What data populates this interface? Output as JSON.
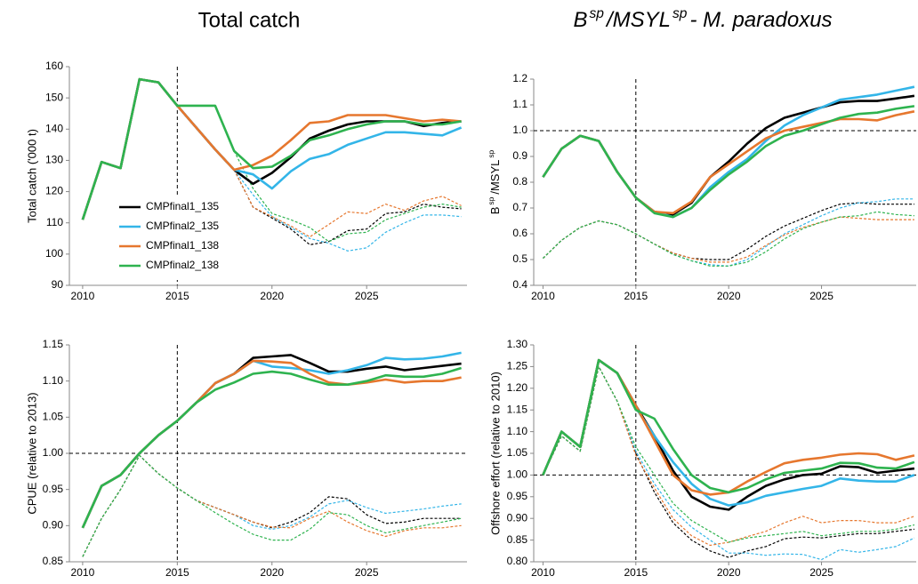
{
  "chart_data": [
    {
      "type": "line",
      "title": "Total catch",
      "ylabel": "Total catch ('000 t)",
      "x": [
        2010,
        2011,
        2012,
        2013,
        2014,
        2015,
        2016,
        2017,
        2018,
        2019,
        2020,
        2021,
        2022,
        2023,
        2024,
        2025,
        2026,
        2027,
        2028,
        2029,
        2030
      ],
      "xlim": [
        2009.3,
        2030.3
      ],
      "xticks": [
        2010,
        2015,
        2020,
        2025
      ],
      "ylim": [
        90,
        160
      ],
      "yticks": [
        90,
        100,
        110,
        120,
        130,
        140,
        150,
        160
      ],
      "vline": 2015,
      "legend": "lower-left",
      "series": [
        {
          "name": "CMPfinal1_135",
          "color": "#000000",
          "dashed": false,
          "values": [
            111,
            129.5,
            127.5,
            156,
            155,
            147.5,
            140.5,
            133.5,
            127,
            122.5,
            126,
            131,
            137,
            139.5,
            141.5,
            142.5,
            142.5,
            142.5,
            141,
            142,
            142.5
          ]
        },
        {
          "name": "CMPfinal2_135",
          "color": "#33b5e8",
          "dashed": false,
          "values": [
            111,
            129.5,
            127.5,
            156,
            155,
            147.5,
            140.5,
            133.5,
            127,
            125.5,
            121,
            126.5,
            130.5,
            132,
            135,
            137,
            139,
            139,
            138.5,
            138,
            140.5
          ]
        },
        {
          "name": "CMPfinal1_138",
          "color": "#e6772e",
          "dashed": false,
          "values": [
            111,
            129.5,
            127.5,
            156,
            155,
            147.5,
            140.5,
            133.5,
            127,
            128.5,
            131.5,
            136.5,
            142,
            142.5,
            144.5,
            144.5,
            144.5,
            143.5,
            142.5,
            143,
            142.5
          ]
        },
        {
          "name": "CMPfinal2_138",
          "color": "#2eb34f",
          "dashed": false,
          "values": [
            111,
            129.5,
            127.5,
            156,
            155,
            147.5,
            147.5,
            147.5,
            133,
            127.5,
            128,
            131.5,
            136.5,
            138,
            140,
            141.5,
            142.5,
            142.5,
            141.5,
            141.5,
            142.5
          ]
        },
        {
          "color": "#000000",
          "dashed": true,
          "values": [
            null,
            null,
            null,
            null,
            null,
            null,
            null,
            null,
            127,
            115,
            111.5,
            108,
            103,
            104,
            107.5,
            108,
            113,
            113.5,
            116,
            115,
            114.5
          ]
        },
        {
          "color": "#33b5e8",
          "dashed": true,
          "values": [
            null,
            null,
            null,
            null,
            null,
            null,
            null,
            null,
            127,
            119,
            112,
            108.5,
            105,
            103.5,
            101,
            102,
            107,
            110,
            112.5,
            112.5,
            112
          ]
        },
        {
          "color": "#e6772e",
          "dashed": true,
          "values": [
            null,
            null,
            null,
            null,
            null,
            null,
            null,
            null,
            127,
            115,
            112,
            109,
            105.5,
            109.5,
            113.5,
            113,
            116,
            114,
            117,
            118.5,
            115.5
          ]
        },
        {
          "color": "#2eb34f",
          "dashed": true,
          "values": [
            null,
            null,
            null,
            null,
            null,
            null,
            null,
            null,
            133,
            121,
            113,
            111,
            108.5,
            104,
            106.5,
            107,
            111,
            113,
            115,
            116,
            115
          ]
        }
      ]
    },
    {
      "type": "line",
      "title": [
        "B",
        "sp",
        "/MSYL",
        "sp",
        "- M. paradoxus"
      ],
      "ylabel": [
        "B",
        "sp",
        "/MSYL",
        "sp"
      ],
      "x": [
        2010,
        2011,
        2012,
        2013,
        2014,
        2015,
        2016,
        2017,
        2018,
        2019,
        2020,
        2021,
        2022,
        2023,
        2024,
        2025,
        2026,
        2027,
        2028,
        2029,
        2030
      ],
      "xlim": [
        2009.5,
        2030.1
      ],
      "xticks": [
        2010,
        2015,
        2020,
        2025
      ],
      "ylim": [
        0.4,
        1.2
      ],
      "yticks": [
        0.4,
        0.5,
        0.6,
        0.7,
        0.8,
        0.9,
        {
          "value": 1,
          "label": "1.0"
        },
        1.1,
        1.2
      ],
      "vline": 2015,
      "hline": 1,
      "series": [
        {
          "color": "#000000",
          "dashed": false,
          "values": [
            0.82,
            0.93,
            0.98,
            0.96,
            0.84,
            0.74,
            0.685,
            0.675,
            0.72,
            0.82,
            0.88,
            0.95,
            1.01,
            1.05,
            1.07,
            1.09,
            1.11,
            1.115,
            1.115,
            1.125,
            1.135
          ]
        },
        {
          "color": "#33b5e8",
          "dashed": false,
          "values": [
            0.82,
            0.93,
            0.98,
            0.96,
            0.84,
            0.74,
            0.685,
            0.665,
            0.7,
            0.78,
            0.84,
            0.89,
            0.96,
            1.02,
            1.06,
            1.09,
            1.12,
            1.13,
            1.14,
            1.155,
            1.17
          ]
        },
        {
          "color": "#e6772e",
          "dashed": false,
          "values": [
            0.82,
            0.93,
            0.98,
            0.96,
            0.84,
            0.74,
            0.685,
            0.68,
            0.725,
            0.82,
            0.87,
            0.92,
            0.97,
            1.0,
            1.015,
            1.03,
            1.045,
            1.045,
            1.04,
            1.06,
            1.075
          ]
        },
        {
          "color": "#2eb34f",
          "dashed": false,
          "values": [
            0.82,
            0.93,
            0.98,
            0.96,
            0.84,
            0.74,
            0.68,
            0.665,
            0.7,
            0.77,
            0.83,
            0.88,
            0.94,
            0.98,
            1.0,
            1.025,
            1.05,
            1.065,
            1.07,
            1.085,
            1.095
          ]
        },
        {
          "color": "#000000",
          "dashed": true,
          "values": [
            0.505,
            0.575,
            0.625,
            0.65,
            0.635,
            0.6,
            0.56,
            0.525,
            0.505,
            0.5,
            0.5,
            0.54,
            0.59,
            0.63,
            0.66,
            0.69,
            0.715,
            0.72,
            0.715,
            0.715,
            0.715
          ]
        },
        {
          "color": "#33b5e8",
          "dashed": true,
          "values": [
            0.505,
            0.575,
            0.625,
            0.65,
            0.635,
            0.6,
            0.56,
            0.52,
            0.495,
            0.48,
            0.475,
            0.5,
            0.55,
            0.6,
            0.635,
            0.67,
            0.7,
            0.72,
            0.725,
            0.735,
            0.735
          ]
        },
        {
          "color": "#e6772e",
          "dashed": true,
          "values": [
            0.505,
            0.575,
            0.625,
            0.65,
            0.635,
            0.6,
            0.56,
            0.525,
            0.505,
            0.49,
            0.49,
            0.51,
            0.555,
            0.595,
            0.625,
            0.645,
            0.665,
            0.66,
            0.655,
            0.655,
            0.655
          ]
        },
        {
          "color": "#2eb34f",
          "dashed": true,
          "values": [
            0.505,
            0.575,
            0.625,
            0.65,
            0.635,
            0.6,
            0.56,
            0.52,
            0.495,
            0.475,
            0.475,
            0.49,
            0.53,
            0.58,
            0.62,
            0.645,
            0.665,
            0.67,
            0.685,
            0.675,
            0.67
          ]
        }
      ]
    },
    {
      "type": "line",
      "ylabel": "CPUE (relative to 2013)",
      "x": [
        2010,
        2011,
        2012,
        2013,
        2014,
        2015,
        2016,
        2017,
        2018,
        2019,
        2020,
        2021,
        2022,
        2023,
        2024,
        2025,
        2026,
        2027,
        2028,
        2029,
        2030
      ],
      "xlim": [
        2009.3,
        2030.3
      ],
      "xticks": [
        2010,
        2015,
        2020,
        2025
      ],
      "ylim": [
        0.85,
        1.15
      ],
      "yticks": [
        0.85,
        {
          "value": 0.9,
          "label": "0.90"
        },
        0.95,
        {
          "value": 1,
          "label": "1.00"
        },
        1.05,
        {
          "value": 1.1,
          "label": "1.10"
        },
        1.15
      ],
      "vline": 2015,
      "hline": 1,
      "series": [
        {
          "color": "#000000",
          "dashed": false,
          "values": [
            0.897,
            0.955,
            0.97,
            1.0,
            1.025,
            1.045,
            1.07,
            1.097,
            1.11,
            1.132,
            1.134,
            1.136,
            1.125,
            1.113,
            1.113,
            1.117,
            1.12,
            1.115,
            1.118,
            1.121,
            1.124
          ]
        },
        {
          "color": "#33b5e8",
          "dashed": false,
          "values": [
            0.897,
            0.955,
            0.97,
            1.0,
            1.025,
            1.045,
            1.07,
            1.097,
            1.11,
            1.128,
            1.12,
            1.118,
            1.115,
            1.11,
            1.115,
            1.122,
            1.132,
            1.13,
            1.131,
            1.134,
            1.139
          ]
        },
        {
          "color": "#e6772e",
          "dashed": false,
          "values": [
            0.897,
            0.955,
            0.97,
            1.0,
            1.025,
            1.045,
            1.07,
            1.097,
            1.11,
            1.128,
            1.127,
            1.125,
            1.11,
            1.098,
            1.095,
            1.098,
            1.102,
            1.098,
            1.1,
            1.1,
            1.105
          ]
        },
        {
          "color": "#2eb34f",
          "dashed": false,
          "values": [
            0.897,
            0.955,
            0.97,
            1.0,
            1.025,
            1.045,
            1.07,
            1.088,
            1.098,
            1.11,
            1.113,
            1.11,
            1.102,
            1.095,
            1.095,
            1.1,
            1.108,
            1.106,
            1.106,
            1.11,
            1.118
          ]
        },
        {
          "color": "#000000",
          "dashed": true,
          "values": [
            0.857,
            0.91,
            0.95,
            0.997,
            0.972,
            0.952,
            0.935,
            0.925,
            0.915,
            0.905,
            0.897,
            0.905,
            0.918,
            0.94,
            0.937,
            0.915,
            0.903,
            0.905,
            0.91,
            0.91,
            0.91
          ]
        },
        {
          "color": "#33b5e8",
          "dashed": true,
          "values": [
            0.857,
            0.91,
            0.95,
            0.997,
            0.972,
            0.952,
            0.935,
            0.925,
            0.915,
            0.9,
            0.895,
            0.9,
            0.912,
            0.93,
            0.935,
            0.925,
            0.917,
            0.92,
            0.923,
            0.927,
            0.93
          ]
        },
        {
          "color": "#e6772e",
          "dashed": true,
          "values": [
            0.857,
            0.91,
            0.95,
            0.997,
            0.972,
            0.952,
            0.935,
            0.925,
            0.915,
            0.905,
            0.898,
            0.897,
            0.91,
            0.92,
            0.905,
            0.893,
            0.885,
            0.893,
            0.897,
            0.897,
            0.9
          ]
        },
        {
          "color": "#2eb34f",
          "dashed": true,
          "values": [
            0.857,
            0.91,
            0.95,
            0.997,
            0.972,
            0.952,
            0.935,
            0.918,
            0.902,
            0.888,
            0.88,
            0.88,
            0.895,
            0.918,
            0.915,
            0.9,
            0.89,
            0.895,
            0.9,
            0.905,
            0.91
          ]
        }
      ]
    },
    {
      "type": "line",
      "ylabel": "Offshore effort (relative to 2010)",
      "x": [
        2010,
        2011,
        2012,
        2013,
        2014,
        2015,
        2016,
        2017,
        2018,
        2019,
        2020,
        2021,
        2022,
        2023,
        2024,
        2025,
        2026,
        2027,
        2028,
        2029,
        2030
      ],
      "xlim": [
        2009.5,
        2030.1
      ],
      "xticks": [
        2010,
        2015,
        2020,
        2025
      ],
      "ylim": [
        0.8,
        1.3
      ],
      "yticks": [
        {
          "value": 0.8,
          "label": "0.80"
        },
        0.85,
        {
          "value": 0.9,
          "label": "0.90"
        },
        0.95,
        {
          "value": 1,
          "label": "1.00"
        },
        1.05,
        {
          "value": 1.1,
          "label": "1.10"
        },
        1.15,
        {
          "value": 1.2,
          "label": "1.20"
        },
        1.25,
        {
          "value": 1.3,
          "label": "1.30"
        }
      ],
      "vline": 2015,
      "hline": 1,
      "series": [
        {
          "color": "#000000",
          "dashed": false,
          "values": [
            1.0,
            1.1,
            1.065,
            1.265,
            1.235,
            1.16,
            1.09,
            1.01,
            0.95,
            0.927,
            0.92,
            0.95,
            0.975,
            0.99,
            1.0,
            1.003,
            1.02,
            1.018,
            1.005,
            1.01,
            1.015
          ]
        },
        {
          "color": "#33b5e8",
          "dashed": false,
          "values": [
            1.0,
            1.1,
            1.065,
            1.265,
            1.235,
            1.155,
            1.09,
            1.03,
            0.98,
            0.945,
            0.93,
            0.937,
            0.952,
            0.96,
            0.968,
            0.975,
            0.992,
            0.987,
            0.985,
            0.985,
            1.0
          ]
        },
        {
          "color": "#e6772e",
          "dashed": false,
          "values": [
            1.0,
            1.1,
            1.065,
            1.265,
            1.235,
            1.16,
            1.08,
            1.0,
            0.965,
            0.955,
            0.96,
            0.985,
            1.007,
            1.027,
            1.035,
            1.04,
            1.047,
            1.05,
            1.048,
            1.035,
            1.045
          ]
        },
        {
          "color": "#2eb34f",
          "dashed": false,
          "values": [
            1.0,
            1.1,
            1.065,
            1.265,
            1.235,
            1.15,
            1.13,
            1.06,
            1.0,
            0.97,
            0.96,
            0.97,
            0.99,
            1.005,
            1.01,
            1.015,
            1.028,
            1.027,
            1.017,
            1.015,
            1.03
          ]
        },
        {
          "color": "#000000",
          "dashed": true,
          "values": [
            1.0,
            1.09,
            1.055,
            1.25,
            1.17,
            1.05,
            0.96,
            0.89,
            0.85,
            0.825,
            0.81,
            0.825,
            0.835,
            0.853,
            0.857,
            0.855,
            0.86,
            0.865,
            0.865,
            0.87,
            0.875
          ]
        },
        {
          "color": "#33b5e8",
          "dashed": true,
          "values": [
            1.0,
            1.09,
            1.055,
            1.25,
            1.17,
            1.055,
            0.98,
            0.92,
            0.88,
            0.85,
            0.82,
            0.82,
            0.815,
            0.818,
            0.817,
            0.805,
            0.828,
            0.822,
            0.828,
            0.835,
            0.855
          ]
        },
        {
          "color": "#e6772e",
          "dashed": true,
          "values": [
            1.0,
            1.09,
            1.055,
            1.25,
            1.17,
            1.045,
            0.97,
            0.9,
            0.86,
            0.838,
            0.845,
            0.858,
            0.87,
            0.89,
            0.905,
            0.89,
            0.895,
            0.895,
            0.89,
            0.89,
            0.905
          ]
        },
        {
          "color": "#2eb34f",
          "dashed": true,
          "values": [
            1.0,
            1.09,
            1.055,
            1.25,
            1.17,
            1.065,
            1.0,
            0.935,
            0.895,
            0.87,
            0.845,
            0.855,
            0.86,
            0.865,
            0.87,
            0.86,
            0.865,
            0.87,
            0.87,
            0.875,
            0.885
          ]
        }
      ]
    }
  ]
}
